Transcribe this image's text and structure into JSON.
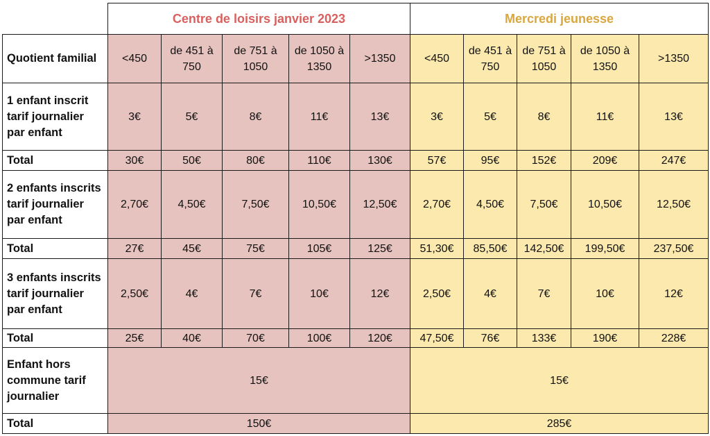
{
  "sections": {
    "centre": "Centre de loisirs janvier 2023",
    "mercredi": "Mercredi jeunesse"
  },
  "rows": {
    "quotient": {
      "label": "Quotient familial",
      "centre": [
        "<450",
        "de 451 à 750",
        "de 751 à 1050",
        "de 1050 à 1350",
        ">1350"
      ],
      "mercredi": [
        "<450",
        "de 451 à 750",
        "de 751 à 1050",
        "de 1050 à 1350",
        ">1350"
      ]
    },
    "one_child": {
      "label": "1 enfant inscrit tarif journalier par enfant",
      "centre": [
        "3€",
        "5€",
        "8€",
        "11€",
        "13€"
      ],
      "mercredi": [
        "3€",
        "5€",
        "8€",
        "11€",
        "13€"
      ]
    },
    "total_1": {
      "label": "Total",
      "centre": [
        "30€",
        "50€",
        "80€",
        "110€",
        "130€"
      ],
      "mercredi": [
        "57€",
        "95€",
        "152€",
        "209€",
        "247€"
      ]
    },
    "two_children": {
      "label": "2 enfants inscrits tarif journalier par enfant",
      "centre": [
        "2,70€",
        "4,50€",
        "7,50€",
        "10,50€",
        "12,50€"
      ],
      "mercredi": [
        "2,70€",
        "4,50€",
        "7,50€",
        "10,50€",
        "12,50€"
      ]
    },
    "total_2": {
      "label": "Total",
      "centre": [
        "27€",
        "45€",
        "75€",
        "105€",
        "125€"
      ],
      "mercredi": [
        "51,30€",
        "85,50€",
        "142,50€",
        "199,50€",
        "237,50€"
      ]
    },
    "three_children": {
      "label": "3 enfants inscrits tarif journalier par enfant",
      "centre": [
        "2,50€",
        "4€",
        "7€",
        "10€",
        "12€"
      ],
      "mercredi": [
        "2,50€",
        "4€",
        "7€",
        "10€",
        "12€"
      ]
    },
    "total_3": {
      "label": "Total",
      "centre": [
        "25€",
        "40€",
        "70€",
        "100€",
        "120€"
      ],
      "mercredi": [
        "47,50€",
        "76€",
        "133€",
        "190€",
        "228€"
      ]
    },
    "hors_commune": {
      "label": "Enfant hors commune tarif journalier",
      "centre": "15€",
      "mercredi": "15€"
    },
    "total_hors": {
      "label": "Total",
      "centre": "150€",
      "mercredi": "285€"
    }
  },
  "colors": {
    "centre_bg": "#e6c3be",
    "mercredi_bg": "#fce9ad",
    "centre_title": "#d9605e",
    "mercredi_title": "#d9a740"
  }
}
